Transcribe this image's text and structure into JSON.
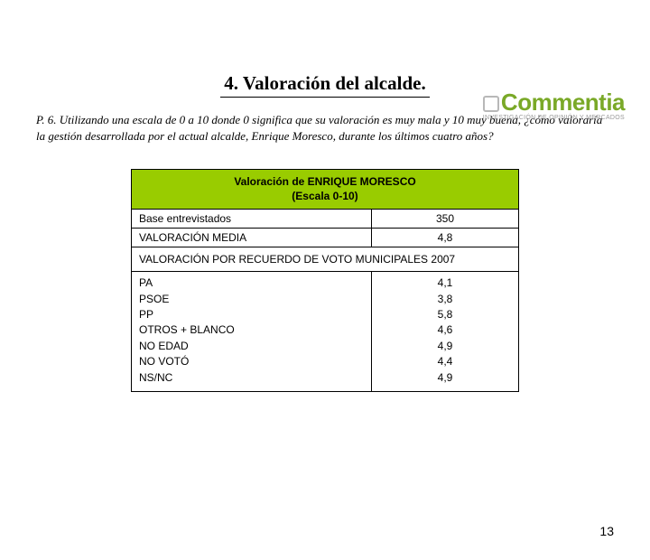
{
  "logo": {
    "name": "Commentia",
    "subtitle": "INVESTIGACIÓN DE OPINIÓN Y MERCADOS"
  },
  "title": "4. Valoración del alcalde.",
  "question": "P. 6.  Utilizando una escala de 0 a 10 donde 0 significa que su valoración es muy mala y 10 muy buena, ¿cómo valoraría la gestión desarrollada por el actual alcalde, Enrique Moresco, durante los últimos cuatro años?",
  "table": {
    "header_line1": "Valoración de ENRIQUE MORESCO",
    "header_line2": "(Escala 0-10)",
    "base_label": "Base entrevistados",
    "base_value": "350",
    "mean_label": "VALORACIÓN MEDIA",
    "mean_value": "4,8",
    "section": "VALORACIÓN POR RECUERDO DE VOTO MUNICIPALES 2007",
    "rows": {
      "labels": [
        "PA",
        "PSOE",
        "PP",
        "OTROS + BLANCO",
        "NO EDAD",
        "NO VOTÓ",
        "NS/NC"
      ],
      "values": [
        "4,1",
        "3,8",
        "5,8",
        "4,6",
        "4,9",
        "4,4",
        "4,9"
      ]
    }
  },
  "page_number": "13",
  "colors": {
    "header_bg": "#99cc00",
    "logo_color": "#7aa928"
  }
}
